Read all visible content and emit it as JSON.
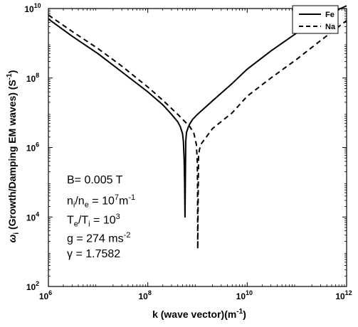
{
  "chart_data": {
    "type": "line",
    "title": "",
    "xlabel": "k (wave vector)(m",
    "xlabel_exp": "-1",
    "xlabel_end": ")",
    "ylabel": "(Growth/Damping EM waves)",
    "ylabel_symbol": "ω",
    "ylabel_sub": "i",
    "ylabel_unit": "(S",
    "ylabel_unit_exp": "-1",
    "ylabel_unit_end": ")",
    "xscale": "log",
    "yscale": "log",
    "xlim": [
      1000000,
      1000000000000
    ],
    "ylim": [
      100,
      10000000000
    ],
    "grid": false,
    "legend_position": "top-right",
    "x_ticks": [
      {
        "value": 1000000,
        "base": "10",
        "exp": "6"
      },
      {
        "value": 100000000,
        "base": "10",
        "exp": "8"
      },
      {
        "value": 10000000000,
        "base": "10",
        "exp": "10"
      },
      {
        "value": 1000000000000,
        "base": "10",
        "exp": "12"
      }
    ],
    "y_ticks": [
      {
        "value": 100,
        "base": "10",
        "exp": "2"
      },
      {
        "value": 10000,
        "base": "10",
        "exp": "4"
      },
      {
        "value": 1000000,
        "base": "10",
        "exp": "6"
      },
      {
        "value": 100000000,
        "base": "10",
        "exp": "8"
      },
      {
        "value": 10000000000,
        "base": "10",
        "exp": "10"
      }
    ],
    "series": [
      {
        "name": "Fe",
        "style": "solid",
        "color": "#000000",
        "x": [
          1000000,
          3000000,
          10000000,
          30000000,
          100000000,
          200000000,
          300000000,
          400000000,
          450000000,
          500000000,
          520000000,
          540000000,
          550000000,
          560000000,
          580000000,
          600000000,
          650000000,
          700000000,
          800000000,
          1000000000,
          2000000000,
          5000000000,
          10000000000,
          30000000000,
          100000000000,
          300000000000,
          1000000000000
        ],
        "y": [
          5000000000,
          1600000000,
          500000000,
          150000000,
          40000000,
          17000000,
          9000000,
          5500000,
          4000000,
          2500000,
          1500000,
          400000,
          100000,
          10000,
          1500000,
          2700000,
          3800000,
          4800000,
          6500000,
          9000000,
          22000000,
          70000000,
          180000000,
          600000000,
          2000000000,
          5500000000,
          12000000000
        ]
      },
      {
        "name": "Na",
        "style": "dashed",
        "color": "#000000",
        "x": [
          1000000,
          3000000,
          10000000,
          30000000,
          100000000,
          200000000,
          400000000,
          700000000,
          850000000,
          950000000,
          990000000,
          1000000000,
          1010000000,
          1050000000,
          1100000000,
          1200000000,
          1500000000,
          2000000000,
          5000000000,
          10000000000,
          30000000000,
          100000000000,
          300000000000,
          1000000000000
        ],
        "y": [
          6500000000,
          2200000000,
          700000000,
          220000000,
          55000000,
          23000000,
          9000000,
          4000000,
          2500000,
          1200000,
          400000,
          80000,
          1200,
          600000,
          900000,
          1300000,
          2000000,
          3500000,
          10000000,
          30000000,
          100000000,
          350000000,
          1200000000,
          4500000000
        ]
      }
    ],
    "annotations": [
      {
        "parts": [
          {
            "t": "B= 0.005 T"
          }
        ]
      },
      {
        "parts": [
          {
            "t": "n"
          },
          {
            "t": "i",
            "sub": true
          },
          {
            "t": "/n"
          },
          {
            "t": "e",
            "sub": true
          },
          {
            "t": " = 10"
          },
          {
            "t": "7",
            "sup": true
          },
          {
            "t": "m"
          },
          {
            "t": "-1",
            "sup": true
          }
        ]
      },
      {
        "parts": [
          {
            "t": "T"
          },
          {
            "t": "e",
            "sub": true
          },
          {
            "t": "/T"
          },
          {
            "t": "i",
            "sub": true
          },
          {
            "t": " = 10"
          },
          {
            "t": "3",
            "sup": true
          }
        ]
      },
      {
        "parts": [
          {
            "t": "g  = 274 ms"
          },
          {
            "t": "-2",
            "sup": true
          }
        ]
      },
      {
        "parts": [
          {
            "t": "γ = 1.7582"
          }
        ]
      }
    ]
  }
}
